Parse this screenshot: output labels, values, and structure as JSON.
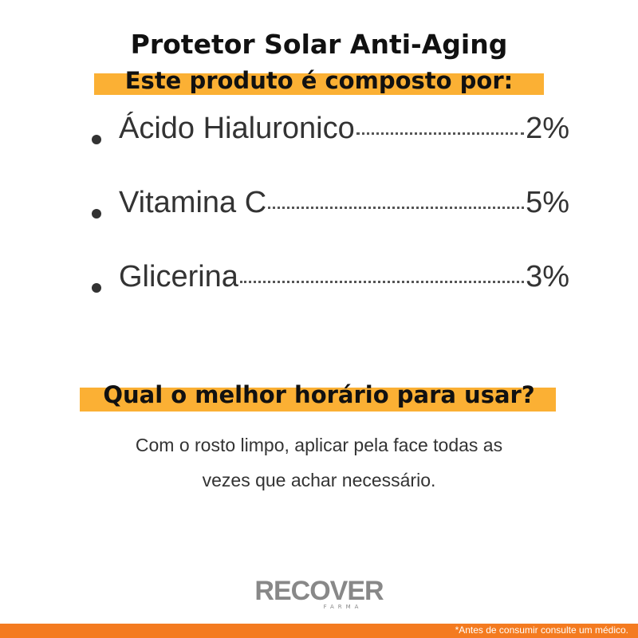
{
  "header": {
    "title": "Protetor Solar Anti-Aging",
    "subtitle": "Este produto é composto por:"
  },
  "ingredients": [
    {
      "name": "Ácido Hialuronico",
      "amount": "2%"
    },
    {
      "name": "Vitamina C",
      "amount": "5%"
    },
    {
      "name": "Glicerina",
      "amount": "3%"
    }
  ],
  "usage": {
    "question": "Qual o melhor horário para usar?",
    "answer": "Com o rosto limpo, aplicar pela face todas as vezes que achar necessário."
  },
  "logo": {
    "brand": "RECOVER",
    "tagline": "FARMA"
  },
  "footer": {
    "note": "*Antes de consumir consulte um médico."
  }
}
